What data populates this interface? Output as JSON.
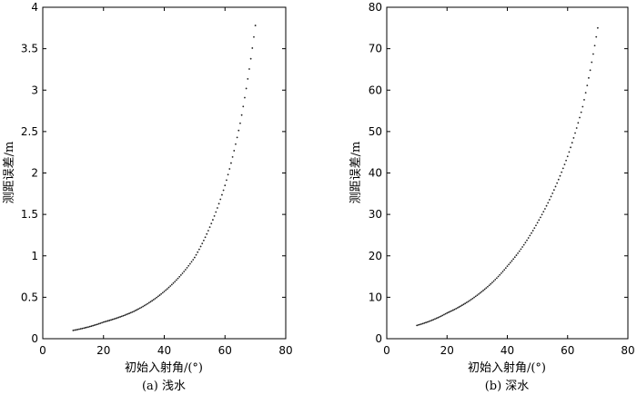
{
  "chart_data": [
    {
      "type": "scatter",
      "caption": "(a) 浅水",
      "xlabel": "初始入射角/(°)",
      "ylabel": "测距误差/m",
      "xlim": [
        0,
        80
      ],
      "ylim": [
        0,
        4
      ],
      "xticks": [
        "0",
        "20",
        "40",
        "60",
        "80"
      ],
      "yticks": [
        "0",
        "0.5",
        "1",
        "1.5",
        "2",
        "2.5",
        "3",
        "3.5",
        "4"
      ],
      "x_range": [
        10,
        70
      ],
      "x_step": 0.5,
      "series": [
        {
          "x": [
            10,
            20,
            30,
            40,
            50,
            60,
            65,
            70
          ],
          "y": [
            0.1,
            0.2,
            0.33,
            0.57,
            0.98,
            1.85,
            2.6,
            3.78
          ]
        }
      ],
      "grid": false,
      "color": "#222222"
    },
    {
      "type": "scatter",
      "caption": "(b) 深水",
      "xlabel": "初始入射角/(°)",
      "ylabel": "测距误差/m",
      "xlim": [
        0,
        80
      ],
      "ylim": [
        0,
        80
      ],
      "xticks": [
        "0",
        "20",
        "40",
        "60",
        "80"
      ],
      "yticks": [
        "0",
        "10",
        "20",
        "30",
        "40",
        "50",
        "60",
        "70",
        "80"
      ],
      "x_range": [
        10,
        70
      ],
      "x_step": 0.5,
      "series": [
        {
          "x": [
            10,
            20,
            30,
            40,
            50,
            60,
            65,
            70
          ],
          "y": [
            3.2,
            6.2,
            10.5,
            17.5,
            28,
            44,
            56,
            75
          ]
        }
      ],
      "grid": false,
      "color": "#222222"
    }
  ]
}
